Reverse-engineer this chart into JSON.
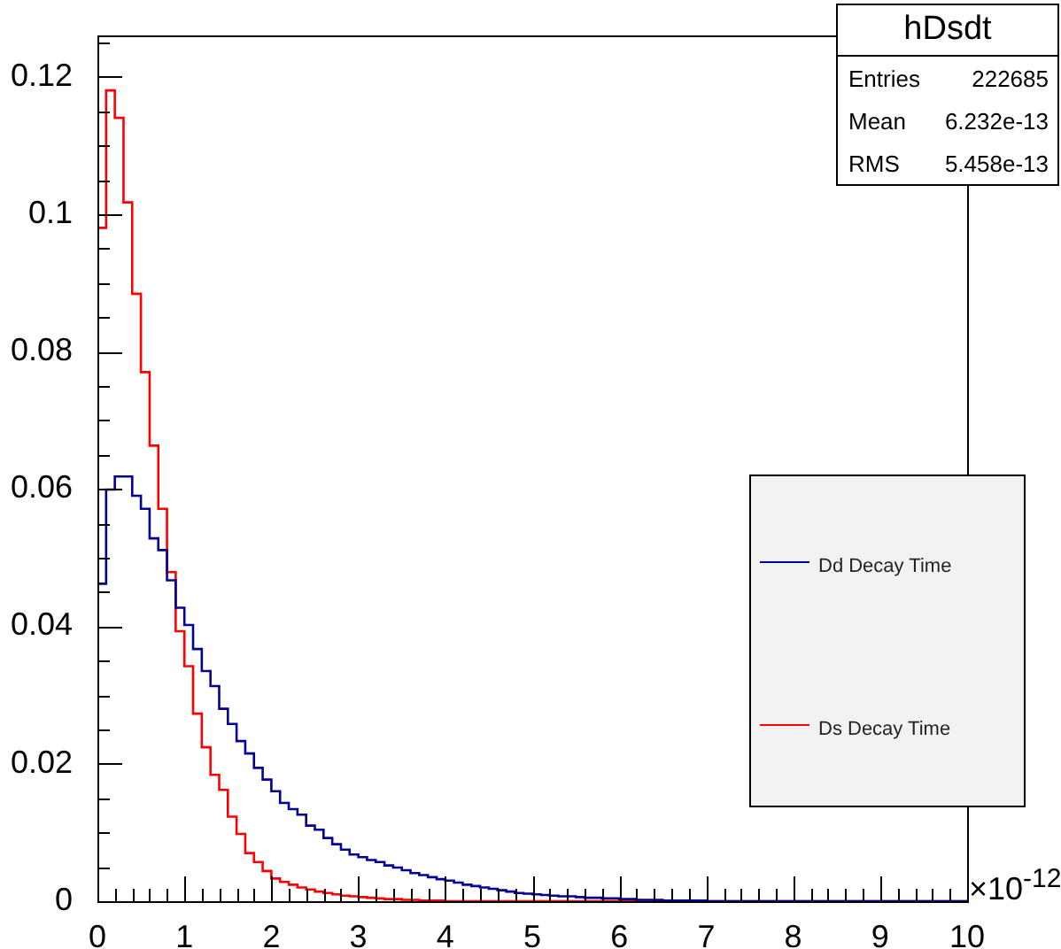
{
  "chart_data": {
    "type": "histogram",
    "title": "hDsdt",
    "xlabel": "×10$^{-12}$",
    "annotations": [
      "Entries 222685",
      "Mean 6.232e-13",
      "RMS 5.458e-13"
    ],
    "bins": [
      0,
      0.1,
      0.2,
      0.3,
      0.4,
      0.5,
      0.6,
      0.7,
      0.8,
      0.9,
      1,
      1.1,
      1.2,
      1.3,
      1.4,
      1.5,
      1.6,
      1.7,
      1.8,
      1.9,
      2,
      2.1,
      2.2,
      2.3,
      2.4,
      2.5,
      2.6,
      2.7,
      2.8,
      2.9,
      3,
      3.1,
      3.2,
      3.3,
      3.4,
      3.5,
      3.6,
      3.7,
      3.8,
      3.9,
      4,
      4.1,
      4.2,
      4.3,
      4.4,
      4.5,
      4.6,
      4.7,
      4.8,
      4.9,
      5,
      5.1,
      5.2,
      5.3,
      5.4,
      5.5,
      5.6,
      5.7,
      5.8,
      5.9,
      6,
      6.1,
      6.2,
      6.3,
      6.4,
      6.5,
      6.6,
      6.7,
      6.8,
      6.9,
      7,
      7.1,
      7.2,
      7.3,
      7.4,
      7.5,
      7.6,
      7.7,
      7.8,
      7.9,
      8,
      8.1,
      8.2,
      8.3,
      8.4,
      8.5,
      8.6,
      8.7,
      8.8,
      8.9,
      9,
      9.1,
      9.2,
      9.3,
      9.4,
      9.5,
      9.6,
      9.7,
      9.8,
      9.9,
      10
    ],
    "series": [
      {
        "name": "Dd Decay Time",
        "color": "#000099",
        "values": [
          0.0462,
          0.0599,
          0.0618,
          0.0618,
          0.059,
          0.0571,
          0.0528,
          0.0511,
          0.0467,
          0.0427,
          0.0402,
          0.0367,
          0.0335,
          0.0313,
          0.028,
          0.0258,
          0.0233,
          0.0215,
          0.0194,
          0.0177,
          0.016,
          0.0143,
          0.0134,
          0.0126,
          0.011,
          0.0104,
          0.0092,
          0.0083,
          0.0075,
          0.0068,
          0.0064,
          0.006,
          0.0057,
          0.0052,
          0.0049,
          0.0045,
          0.0041,
          0.0038,
          0.0035,
          0.0032,
          0.003,
          0.0027,
          0.0024,
          0.0022,
          0.002,
          0.0018,
          0.0016,
          0.0014,
          0.0012,
          0.0011,
          0.001,
          0.0009,
          0.0008,
          0.0007,
          0.0007,
          0.0006,
          0.0005,
          0.0005,
          0.0004,
          0.0004,
          0.0003,
          0.0003,
          0.0002,
          0.0002,
          0.0002,
          0.0001,
          0.0001,
          0.0001,
          0.0001,
          0.0001,
          0,
          0,
          0,
          0,
          0,
          0,
          0,
          0,
          0,
          0,
          0,
          0,
          0,
          0,
          0,
          0,
          0,
          0,
          0,
          0,
          0,
          0,
          0,
          0,
          0,
          0,
          0,
          0,
          0,
          0
        ]
      },
      {
        "name": "Ds Decay Time",
        "color": "#ff0000",
        "values": [
          0.098,
          0.118,
          0.114,
          0.1017,
          0.0884,
          0.077,
          0.0663,
          0.0571,
          0.0479,
          0.0393,
          0.0342,
          0.0273,
          0.0224,
          0.0184,
          0.0162,
          0.0123,
          0.0098,
          0.007,
          0.0057,
          0.0044,
          0.0033,
          0.0028,
          0.0024,
          0.002,
          0.0017,
          0.0014,
          0.0012,
          0.001,
          0.0008,
          0.0007,
          0.0006,
          0.0005,
          0.0004,
          0.0003,
          0.0003,
          0.0002,
          0.0002,
          0.0001,
          0.0001,
          0.0001,
          0,
          0,
          0,
          0,
          0,
          0,
          0,
          0,
          0,
          0,
          0,
          0,
          0,
          0,
          0,
          0,
          0,
          0,
          0,
          0,
          0,
          0,
          0,
          0,
          0,
          0,
          0,
          0,
          0,
          0,
          0,
          0,
          0,
          0,
          0,
          0,
          0,
          0,
          0,
          0,
          0,
          0,
          0,
          0,
          0,
          0,
          0,
          0,
          0,
          0,
          0,
          0,
          0,
          0,
          0,
          0,
          0,
          0,
          0,
          0
        ]
      }
    ],
    "xlim": [
      0,
      10
    ],
    "ylim": [
      0,
      0.126
    ],
    "xticks": [
      0,
      {
        "value": 0.2,
        "label": null
      },
      {
        "value": 0.4,
        "label": null
      },
      {
        "value": 0.6,
        "label": null
      },
      {
        "value": 0.8,
        "label": null
      },
      1,
      {
        "value": 1.2,
        "label": null
      },
      {
        "value": 1.4,
        "label": null
      },
      {
        "value": 1.6,
        "label": null
      },
      {
        "value": 1.8,
        "label": null
      },
      2,
      {
        "value": 2.2,
        "label": null
      },
      {
        "value": 2.4,
        "label": null
      },
      {
        "value": 2.6,
        "label": null
      },
      {
        "value": 2.8,
        "label": null
      },
      3,
      {
        "value": 3.2,
        "label": null
      },
      {
        "value": 3.4,
        "label": null
      },
      {
        "value": 3.6,
        "label": null
      },
      {
        "value": 3.8,
        "label": null
      },
      4,
      {
        "value": 4.2,
        "label": null
      },
      {
        "value": 4.4,
        "label": null
      },
      {
        "value": 4.6,
        "label": null
      },
      {
        "value": 4.8,
        "label": null
      },
      5,
      {
        "value": 5.2,
        "label": null
      },
      {
        "value": 5.4,
        "label": null
      },
      {
        "value": 5.6,
        "label": null
      },
      {
        "value": 5.8,
        "label": null
      },
      6,
      {
        "value": 6.2,
        "label": null
      },
      {
        "value": 6.4,
        "label": null
      },
      {
        "value": 6.6,
        "label": null
      },
      {
        "value": 6.8,
        "label": null
      },
      7,
      {
        "value": 7.2,
        "label": null
      },
      {
        "value": 7.4,
        "label": null
      },
      {
        "value": 7.6,
        "label": null
      },
      {
        "value": 7.8,
        "label": null
      },
      8,
      {
        "value": 8.2,
        "label": null
      },
      {
        "value": 8.4,
        "label": null
      },
      {
        "value": 8.6,
        "label": null
      },
      {
        "value": 8.8,
        "label": null
      },
      9,
      {
        "value": 9.2,
        "label": null
      },
      {
        "value": 9.4,
        "label": null
      },
      {
        "value": 9.6,
        "label": null
      },
      {
        "value": 9.8,
        "label": null
      },
      10
    ],
    "yticks": [
      0,
      {
        "value": 0.005,
        "label": null
      },
      {
        "value": 0.01,
        "label": null
      },
      {
        "value": 0.015,
        "label": null
      },
      0.02,
      {
        "value": 0.025,
        "label": null
      },
      {
        "value": 0.03,
        "label": null
      },
      {
        "value": 0.035,
        "label": null
      },
      0.04,
      {
        "value": 0.045,
        "label": null
      },
      {
        "value": 0.05,
        "label": null
      },
      {
        "value": 0.055,
        "label": null
      },
      0.06,
      {
        "value": 0.065,
        "label": null
      },
      {
        "value": 0.07,
        "label": null
      },
      {
        "value": 0.075,
        "label": null
      },
      0.08,
      {
        "value": 0.085,
        "label": null
      },
      {
        "value": 0.09,
        "label": null
      },
      {
        "value": 0.095,
        "label": null
      },
      0.1,
      {
        "value": 0.105,
        "label": null
      },
      {
        "value": 0.11,
        "label": null
      },
      {
        "value": 0.115,
        "label": null
      },
      0.12,
      {
        "value": 0.125,
        "label": null
      }
    ],
    "legend": "right"
  }
}
